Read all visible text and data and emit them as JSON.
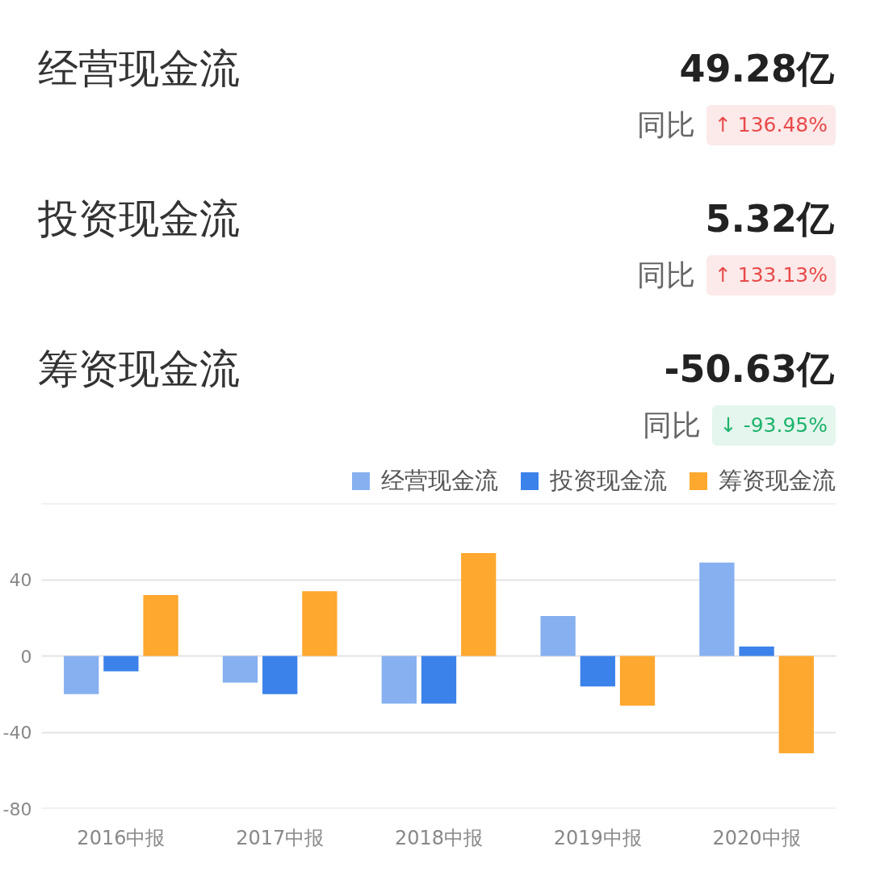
{
  "chart_data": [
    {
      "type": "other",
      "annotations": [
        "经营现金流",
        "49.28亿",
        "同比",
        "↑ 136.48%",
        "投资现金流",
        "5.32亿",
        "同比",
        "↑ 133.13%",
        "筹资现金流",
        "-50.63亿",
        "同比",
        "↓ -93.95%"
      ],
      "colors": [
        "#e84a4a",
        "#e84a4a",
        "#1db36b"
      ]
    },
    {
      "type": "bar",
      "categories": [
        "2016中报",
        "2017中报",
        "2018中报",
        "2019中报",
        "2020中报"
      ],
      "series": [
        {
          "name": "经营现金流",
          "color": "#86b0f0",
          "values": [
            -20,
            -14,
            -25,
            21,
            49
          ]
        },
        {
          "name": "投资现金流",
          "color": "#3b82ea",
          "values": [
            -8,
            -20,
            -25,
            -16,
            5
          ]
        },
        {
          "name": "筹资现金流",
          "color": "#fea82f",
          "values": [
            32,
            34,
            54,
            -26,
            -51
          ]
        }
      ],
      "ylim": [
        -80,
        80
      ],
      "yticks": [
        -80,
        -40,
        0,
        40,
        {
          "value": 80,
          "label": null
        }
      ],
      "grid": "y",
      "legend": "top right"
    }
  ]
}
